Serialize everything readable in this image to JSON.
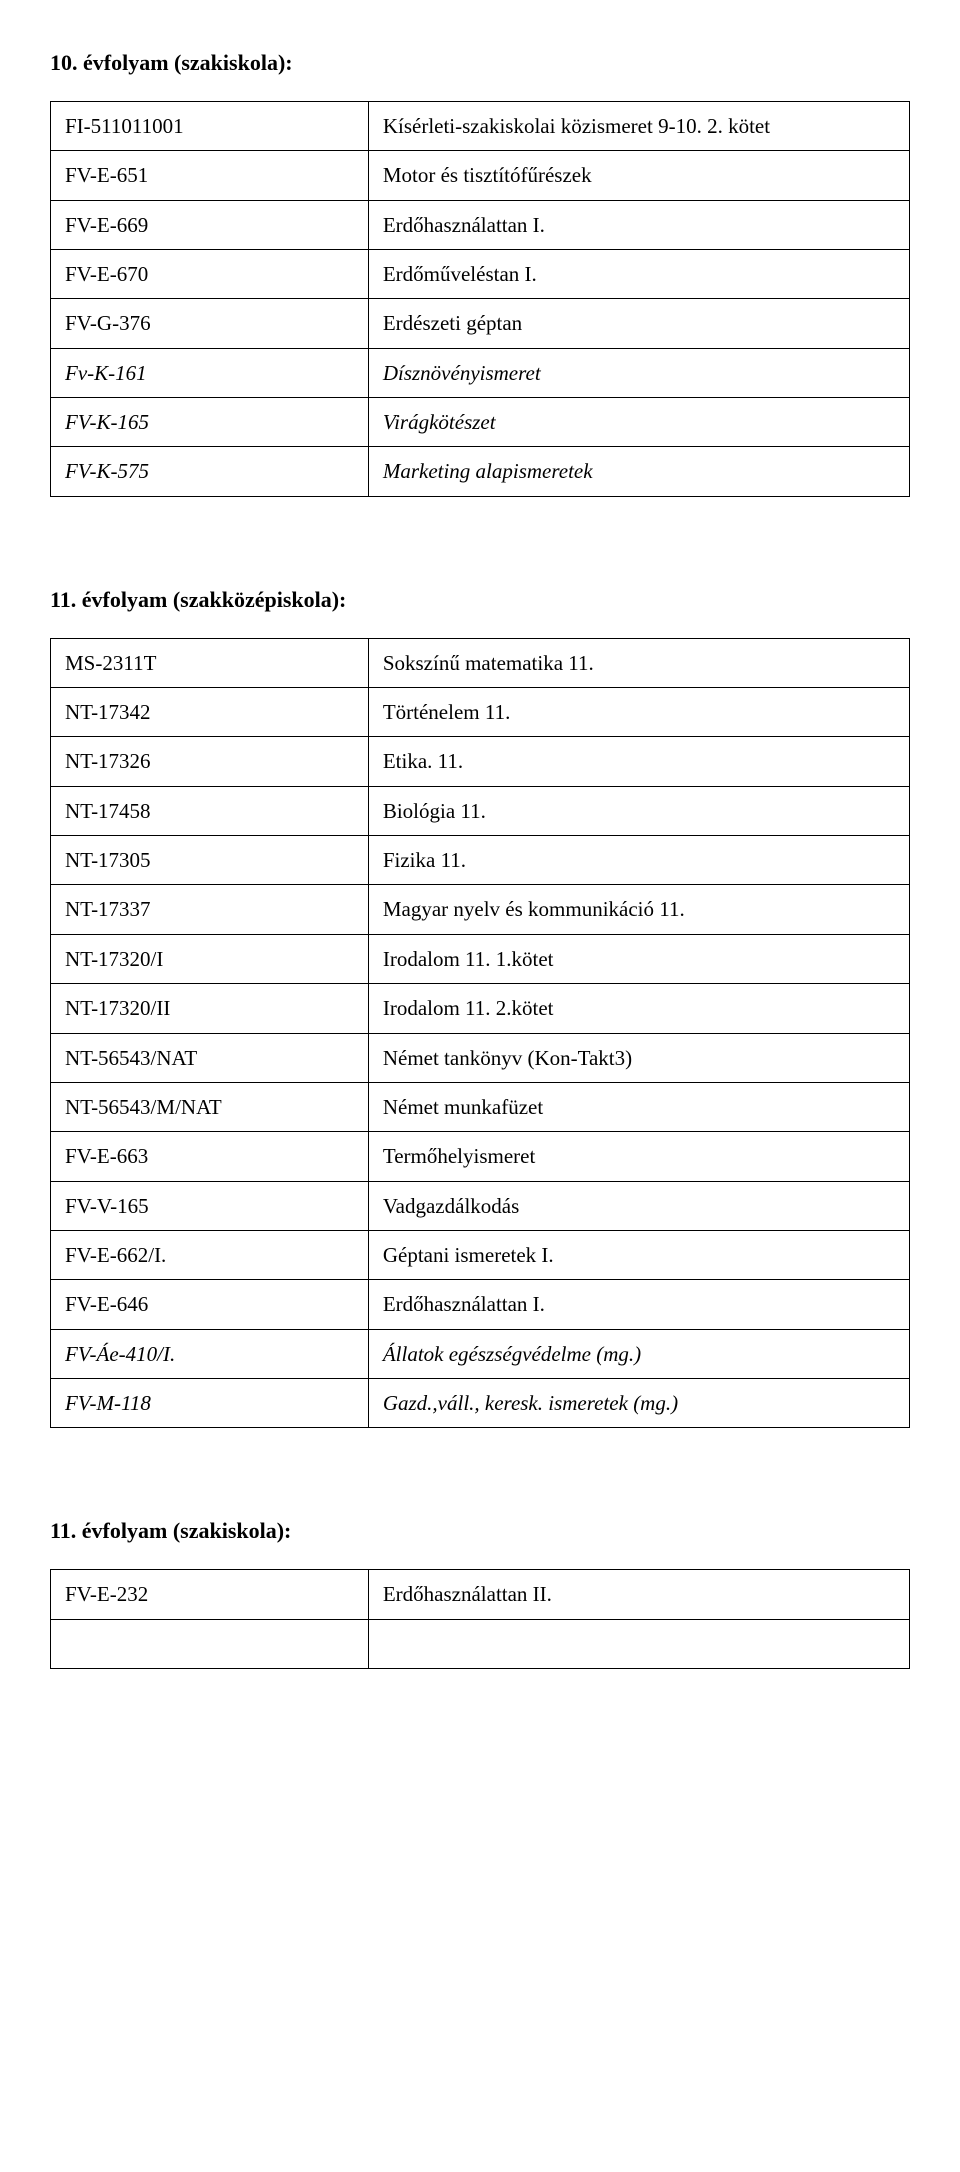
{
  "sections": [
    {
      "heading": "10. évfolyam (szakiskola):",
      "gap_above": false,
      "rows": [
        {
          "code": "FI-511011001",
          "desc": "Kísérleti-szakiskolai közismeret 9-10. 2. kötet",
          "code_italic": false,
          "desc_italic": false
        },
        {
          "code": "FV-E-651",
          "desc": "Motor és tisztítófűrészek",
          "code_italic": false,
          "desc_italic": false
        },
        {
          "code": "FV-E-669",
          "desc": "Erdőhasználattan I.",
          "code_italic": false,
          "desc_italic": false
        },
        {
          "code": "FV-E-670",
          "desc": "Erdőműveléstan I.",
          "code_italic": false,
          "desc_italic": false
        },
        {
          "code": "FV-G-376",
          "desc": "Erdészeti géptan",
          "code_italic": false,
          "desc_italic": false
        },
        {
          "code": "Fv-K-161",
          "desc": "Dísznövényismeret",
          "code_italic": true,
          "desc_italic": true
        },
        {
          "code": "FV-K-165",
          "desc": "Virágkötészet",
          "code_italic": true,
          "desc_italic": true
        },
        {
          "code": "FV-K-575",
          "desc": "Marketing alapismeretek",
          "code_italic": true,
          "desc_italic": true
        }
      ]
    },
    {
      "heading": "11. évfolyam (szakközépiskola):",
      "gap_above": true,
      "rows": [
        {
          "code": "MS-2311T",
          "desc": "Sokszínű matematika 11.",
          "code_italic": false,
          "desc_italic": false
        },
        {
          "code": "NT-17342",
          "desc": "Történelem 11.",
          "code_italic": false,
          "desc_italic": false
        },
        {
          "code": "NT-17326",
          "desc": "Etika. 11.",
          "code_italic": false,
          "desc_italic": false
        },
        {
          "code": "NT-17458",
          "desc": "Biológia 11.",
          "code_italic": false,
          "desc_italic": false
        },
        {
          "code": "NT-17305",
          "desc": "Fizika 11.",
          "code_italic": false,
          "desc_italic": false
        },
        {
          "code": "NT-17337",
          "desc": "Magyar nyelv és kommunikáció 11.",
          "code_italic": false,
          "desc_italic": false
        },
        {
          "code": "NT-17320/I",
          "desc": "Irodalom 11. 1.kötet",
          "code_italic": false,
          "desc_italic": false
        },
        {
          "code": "NT-17320/II",
          "desc": "Irodalom 11. 2.kötet",
          "code_italic": false,
          "desc_italic": false
        },
        {
          "code": "NT-56543/NAT",
          "desc": "Német tankönyv (Kon-Takt3)",
          "code_italic": false,
          "desc_italic": false
        },
        {
          "code": "NT-56543/M/NAT",
          "desc": "Német munkafüzet",
          "code_italic": false,
          "desc_italic": false
        },
        {
          "code": "FV-E-663",
          "desc": "Termőhelyismeret",
          "code_italic": false,
          "desc_italic": false
        },
        {
          "code": "FV-V-165",
          "desc": "Vadgazdálkodás",
          "code_italic": false,
          "desc_italic": false
        },
        {
          "code": "FV-E-662/I.",
          "desc": "Géptani ismeretek I.",
          "code_italic": false,
          "desc_italic": false
        },
        {
          "code": "FV-E-646",
          "desc": "Erdőhasználattan I.",
          "code_italic": false,
          "desc_italic": false
        },
        {
          "code": "FV-Áe-410/I.",
          "desc": "Állatok egészségvédelme (mg.)",
          "code_italic": true,
          "desc_italic": true
        },
        {
          "code": "FV-M-118",
          "desc": "Gazd.,váll., keresk. ismeretek (mg.)",
          "code_italic": true,
          "desc_italic": true
        }
      ]
    },
    {
      "heading": "11. évfolyam (szakiskola):",
      "gap_above": true,
      "rows": [
        {
          "code": "FV-E-232",
          "desc": "Erdőhasználattan II.",
          "code_italic": false,
          "desc_italic": false
        },
        {
          "code": "",
          "desc": "",
          "code_italic": false,
          "desc_italic": false
        }
      ]
    }
  ]
}
